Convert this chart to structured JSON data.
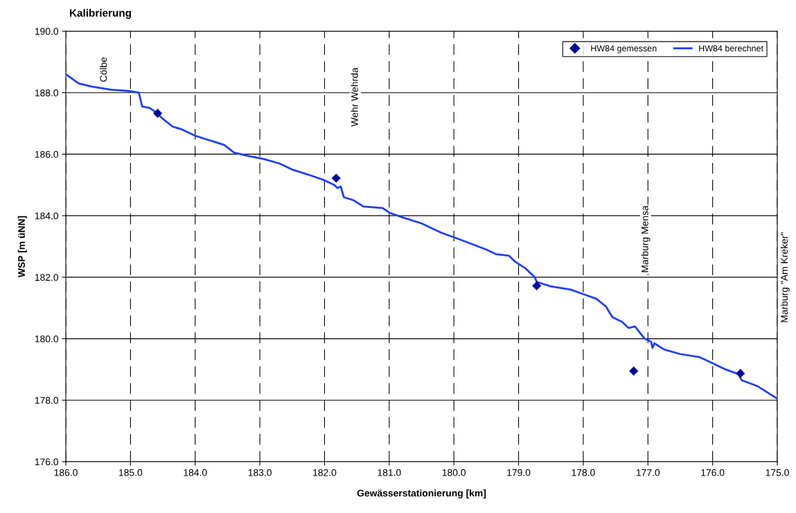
{
  "chart_data": {
    "type": "line",
    "title": "Kalibrierung",
    "xlabel": "Gewässerstationierung [km]",
    "ylabel": "WSP [m üNN]",
    "xlim": [
      186.0,
      175.0
    ],
    "xticks": [
      {
        "value": 186,
        "label": "186.0"
      },
      {
        "value": 185,
        "label": "185.0"
      },
      {
        "value": 184,
        "label": "184.0"
      },
      {
        "value": 183,
        "label": "183.0"
      },
      {
        "value": 182,
        "label": "182.0"
      },
      {
        "value": 181,
        "label": "181.0"
      },
      {
        "value": 180,
        "label": "180.0"
      },
      {
        "value": 179,
        "label": "179.0"
      },
      {
        "value": 178,
        "label": "178.0"
      },
      {
        "value": 177,
        "label": "177.0"
      },
      {
        "value": 176,
        "label": "176.0"
      },
      {
        "value": 175,
        "label": "175.0"
      }
    ],
    "ylim": [
      176.0,
      190.0
    ],
    "yticks": [
      {
        "value": 176,
        "label": "176.0"
      },
      {
        "value": 178,
        "label": "178.0"
      },
      {
        "value": 180,
        "label": "180.0"
      },
      {
        "value": 182,
        "label": "182.0"
      },
      {
        "value": 184,
        "label": "184.0"
      },
      {
        "value": 186,
        "label": "186.0"
      },
      {
        "value": 188,
        "label": "188.0"
      },
      {
        "value": 190,
        "label": "190.0"
      }
    ],
    "grid": true,
    "legend": "top right",
    "series": [
      {
        "name": "HW84 gemessen",
        "type": "scatter",
        "marker": "diamond",
        "color": "#000099",
        "x": [
          184.58,
          181.82,
          178.72,
          177.22,
          175.57
        ],
        "values": [
          187.33,
          185.22,
          181.72,
          178.95,
          178.87
        ]
      },
      {
        "name": "HW84 berechnet",
        "marker": "none",
        "line_style": "solid",
        "color": "#1f3fff",
        "x": [
          186.0,
          185.8,
          185.6,
          185.3,
          185.0,
          184.87,
          184.82,
          184.7,
          184.6,
          184.5,
          184.35,
          184.2,
          184.0,
          183.85,
          183.7,
          183.55,
          183.4,
          183.2,
          182.95,
          182.7,
          182.5,
          182.2,
          182.0,
          181.85,
          181.8,
          181.75,
          181.7,
          181.55,
          181.4,
          181.1,
          181.0,
          180.8,
          180.5,
          180.2,
          180.0,
          179.75,
          179.5,
          179.35,
          179.15,
          179.05,
          178.9,
          178.75,
          178.72,
          178.65,
          178.5,
          178.2,
          178.0,
          177.8,
          177.65,
          177.55,
          177.4,
          177.3,
          177.2,
          177.05,
          176.95,
          176.93,
          176.9,
          176.75,
          176.5,
          176.2,
          176.0,
          175.8,
          175.6,
          175.55,
          175.3,
          175.0
        ],
        "values": [
          188.6,
          188.3,
          188.2,
          188.1,
          188.05,
          188.0,
          187.55,
          187.5,
          187.35,
          187.15,
          186.9,
          186.8,
          186.6,
          186.5,
          186.4,
          186.3,
          186.05,
          185.95,
          185.85,
          185.7,
          185.5,
          185.3,
          185.15,
          185.0,
          184.9,
          184.95,
          184.6,
          184.5,
          184.3,
          184.25,
          184.1,
          183.95,
          183.75,
          183.45,
          183.3,
          183.1,
          182.9,
          182.75,
          182.7,
          182.5,
          182.3,
          182.0,
          181.85,
          181.8,
          181.7,
          181.6,
          181.45,
          181.3,
          181.05,
          180.7,
          180.55,
          180.35,
          180.4,
          180.0,
          179.9,
          179.7,
          179.85,
          179.65,
          179.5,
          179.4,
          179.2,
          179.0,
          178.85,
          178.65,
          178.45,
          178.05
        ]
      }
    ],
    "annotations": [
      "Cölbe",
      "Wehr Wehrda",
      "Marburg Mensa",
      "Marburg \"Am Kreker\""
    ]
  }
}
